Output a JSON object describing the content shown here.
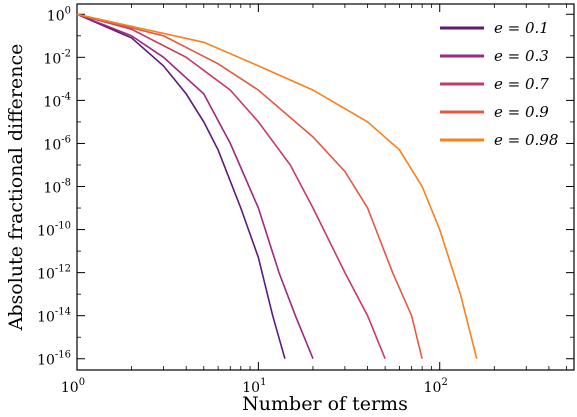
{
  "chart_data": {
    "type": "line",
    "title": "",
    "xlabel": "Number of terms",
    "ylabel": "Absolute fractional difference",
    "xscale": "log",
    "yscale": "log",
    "xlim": [
      1,
      550
    ],
    "ylim": [
      3e-17,
      3
    ],
    "x_ticks": [
      {
        "value": 1,
        "base": "10",
        "exp": "0"
      },
      {
        "value": 10,
        "base": "10",
        "exp": "1"
      },
      {
        "value": 100,
        "base": "10",
        "exp": "2"
      }
    ],
    "y_ticks": [
      {
        "value": 1,
        "base": "10",
        "exp": "0"
      },
      {
        "value": 0.01,
        "base": "10",
        "exp": "-2"
      },
      {
        "value": 0.0001,
        "base": "10",
        "exp": "-4"
      },
      {
        "value": 1e-06,
        "base": "10",
        "exp": "-6"
      },
      {
        "value": 1e-08,
        "base": "10",
        "exp": "-8"
      },
      {
        "value": 1e-10,
        "base": "10",
        "exp": "-10"
      },
      {
        "value": 1e-12,
        "base": "10",
        "exp": "-12"
      },
      {
        "value": 1e-14,
        "base": "10",
        "exp": "-14"
      },
      {
        "value": 1e-16,
        "base": "10",
        "exp": "-16"
      }
    ],
    "grid": false,
    "legend_position": "top-right",
    "series": [
      {
        "name": "e = 0.1",
        "e": "0.1",
        "color": "#5c1a7a",
        "x": [
          1,
          2,
          3,
          4,
          5,
          6,
          8,
          10,
          12,
          14
        ],
        "y": [
          1,
          0.08,
          0.004,
          0.0002,
          1e-05,
          5e-07,
          1e-09,
          5e-12,
          1e-14,
          1e-16
        ]
      },
      {
        "name": "e = 0.3",
        "e": "0.3",
        "color": "#9c2a7f",
        "x": [
          1,
          2,
          3,
          5,
          7,
          10,
          13,
          16,
          20
        ],
        "y": [
          1,
          0.1,
          0.01,
          0.0002,
          1e-06,
          1e-09,
          1e-12,
          1e-14,
          1e-16
        ]
      },
      {
        "name": "e = 0.7",
        "e": "0.7",
        "color": "#c93a62",
        "x": [
          1,
          2,
          4,
          7,
          10,
          15,
          20,
          30,
          40,
          50
        ],
        "y": [
          1,
          0.2,
          0.01,
          0.0003,
          1e-05,
          1e-07,
          1e-09,
          1e-12,
          1e-14,
          1e-16
        ]
      },
      {
        "name": "e = 0.9",
        "e": "0.9",
        "color": "#e05a45",
        "x": [
          1,
          3,
          6,
          10,
          20,
          30,
          40,
          55,
          70,
          80
        ],
        "y": [
          1,
          0.1,
          0.005,
          0.0003,
          2e-06,
          5e-08,
          1e-09,
          1e-12,
          1e-14,
          1e-16
        ]
      },
      {
        "name": "e = 0.98",
        "e": "0.98",
        "color": "#f5821f",
        "x": [
          1,
          5,
          10,
          20,
          40,
          60,
          80,
          100,
          130,
          160
        ],
        "y": [
          1,
          0.05,
          0.004,
          0.0003,
          1e-05,
          5e-07,
          1e-08,
          1e-10,
          1e-13,
          1e-16
        ]
      }
    ]
  }
}
